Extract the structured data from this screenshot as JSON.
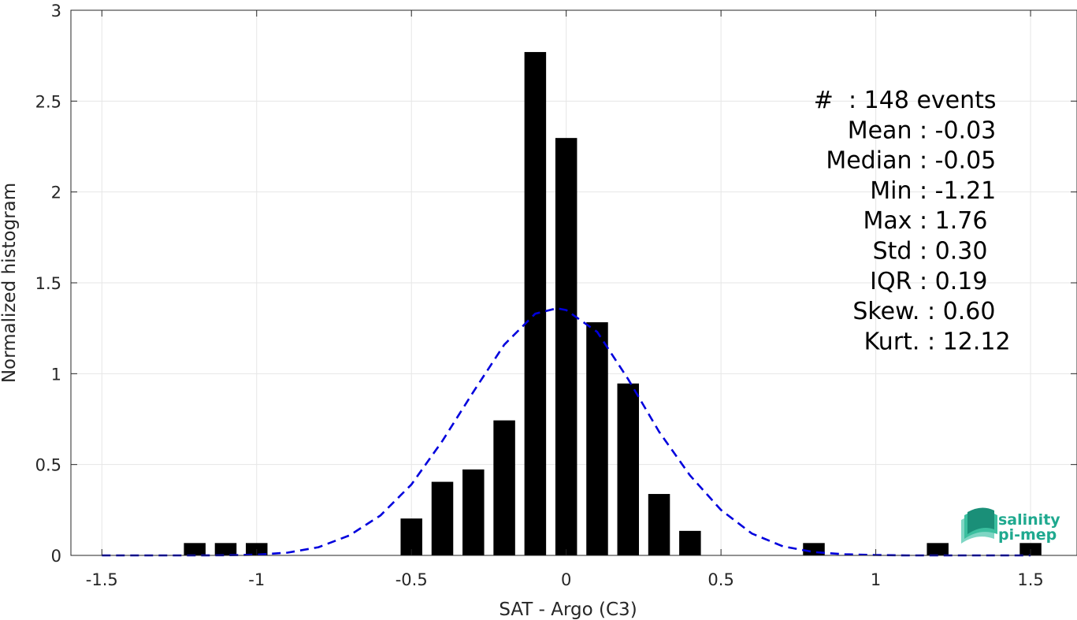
{
  "chart_data": {
    "type": "bar",
    "xlabel": "SAT - Argo (C3)",
    "ylabel": "Normalized histogram",
    "xlim": [
      -1.6,
      1.65
    ],
    "ylim": [
      0,
      3
    ],
    "x_ticks": [
      -1.5,
      -1,
      -0.5,
      0,
      0.5,
      1,
      1.5
    ],
    "x_tick_labels": [
      "-1.5",
      "-1",
      "-0.5",
      "0",
      "0.5",
      "1",
      "1.5"
    ],
    "y_ticks": [
      0,
      0.5,
      1,
      1.5,
      2,
      2.5,
      3
    ],
    "y_tick_labels": [
      "0",
      "0.5",
      "1",
      "1.5",
      "2",
      "2.5",
      "3"
    ],
    "grid": true,
    "bar_width": 0.07,
    "bars": {
      "x": [
        -1.2,
        -1.1,
        -1.0,
        -0.5,
        -0.4,
        -0.3,
        -0.2,
        -0.1,
        0.0,
        0.1,
        0.2,
        0.3,
        0.4,
        0.8,
        1.2,
        1.5
      ],
      "values": [
        0.068,
        0.068,
        0.068,
        0.203,
        0.405,
        0.473,
        0.743,
        2.77,
        2.297,
        1.283,
        0.946,
        0.338,
        0.135,
        0.068,
        0.068,
        0.068
      ],
      "color": "#000000"
    },
    "fit_curve": {
      "style": "dashed",
      "color": "#0000dd",
      "x": [
        -1.5,
        -1.4,
        -1.3,
        -1.2,
        -1.1,
        -1.0,
        -0.9,
        -0.8,
        -0.7,
        -0.6,
        -0.5,
        -0.4,
        -0.3,
        -0.2,
        -0.1,
        -0.03,
        0.0,
        0.1,
        0.2,
        0.3,
        0.4,
        0.5,
        0.6,
        0.7,
        0.8,
        0.9,
        1.0,
        1.1,
        1.2,
        1.3,
        1.4,
        1.5
      ],
      "y": [
        0.0,
        0.0,
        0.0,
        0.0,
        0.001,
        0.004,
        0.015,
        0.045,
        0.11,
        0.22,
        0.39,
        0.63,
        0.9,
        1.16,
        1.33,
        1.36,
        1.35,
        1.23,
        0.97,
        0.68,
        0.44,
        0.25,
        0.12,
        0.05,
        0.018,
        0.006,
        0.002,
        0.0,
        0.0,
        0.0,
        0.0,
        0.0
      ]
    },
    "annotations": [
      {
        "label": "#  ",
        "value": ": 148 events"
      },
      {
        "label": "Mean ",
        "value": ": -0.03"
      },
      {
        "label": "Median ",
        "value": ": -0.05"
      },
      {
        "label": "Min ",
        "value": ": -1.21"
      },
      {
        "label": "Max ",
        "value": ": 1.76"
      },
      {
        "label": "Std ",
        "value": ": 0.30"
      },
      {
        "label": "IQR ",
        "value": ": 0.19"
      },
      {
        "label": "Skew. ",
        "value": ": 0.60"
      },
      {
        "label": "Kurt. ",
        "value": ": 12.12"
      }
    ]
  },
  "logo": {
    "line1": "salinity",
    "line2": "pi-mep",
    "color": "#1fa98f"
  }
}
